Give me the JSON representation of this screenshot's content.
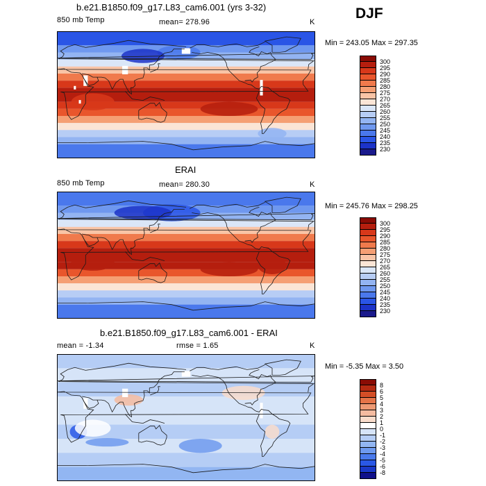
{
  "season": "DJF",
  "units": "K",
  "palettes": {
    "abs": [
      "#1a1a8c",
      "#1c33c8",
      "#2a55e6",
      "#4a78ec",
      "#6f98ef",
      "#93b4f2",
      "#b7cdf5",
      "#dae6f8",
      "#fbe5d6",
      "#f9c4a6",
      "#f59f74",
      "#f07a4c",
      "#e9562c",
      "#d8381a",
      "#b51e0e",
      "#8a0c05"
    ],
    "diff": [
      "#10108a",
      "#1a38c8",
      "#2a58e6",
      "#4a7aec",
      "#6e9aef",
      "#92b6f2",
      "#b5cdf5",
      "#d6e4f8",
      "#ffffff",
      "#f9dccb",
      "#f4bba0",
      "#ee9a74",
      "#e57448",
      "#d34e26",
      "#b52a12",
      "#8a0c05"
    ]
  },
  "panels": [
    {
      "title": "b.e21.B1850.f09_g17.L83_cam6.001 (yrs 3-32)",
      "left_label": "850 mb Temp",
      "center_label": "mean= 278.96",
      "right_label": "K",
      "minmax": "Min = 243.05 Max = 297.35",
      "map_name": "model-temperature-map",
      "palette": "abs",
      "colorbar_labels": [
        "300",
        "295",
        "290",
        "285",
        "280",
        "275",
        "270",
        "265",
        "260",
        "255",
        "250",
        "245",
        "240",
        "235",
        "230"
      ],
      "map_fields": {
        "lat_bands": [
          [
            90,
            70,
            2
          ],
          [
            70,
            60,
            4
          ],
          [
            60,
            50,
            5
          ],
          [
            50,
            40,
            7
          ],
          [
            40,
            30,
            9
          ],
          [
            30,
            20,
            11
          ],
          [
            20,
            10,
            13
          ],
          [
            10,
            -10,
            14
          ],
          [
            -10,
            -20,
            13
          ],
          [
            -20,
            -30,
            12
          ],
          [
            -30,
            -40,
            10
          ],
          [
            -40,
            -50,
            8
          ],
          [
            -50,
            -60,
            6
          ],
          [
            -60,
            -70,
            5
          ],
          [
            -70,
            -90,
            3
          ]
        ],
        "blobs": [
          [
            240,
            -20,
            40,
            10,
            14
          ],
          [
            50,
            -10,
            30,
            12,
            13
          ],
          [
            170,
            60,
            30,
            10,
            3
          ],
          [
            120,
            55,
            30,
            10,
            1
          ],
          [
            300,
            -55,
            20,
            8,
            5
          ]
        ],
        "missing": [
          [
            40,
            20,
            6,
            15
          ],
          [
            95,
            35,
            8,
            12
          ],
          [
            180,
            62,
            12,
            8
          ],
          [
            285,
            10,
            4,
            22
          ],
          [
            25,
            10,
            3,
            5
          ],
          [
            32,
            -10,
            3,
            5
          ]
        ]
      }
    },
    {
      "title": "ERAI",
      "left_label": "850 mb Temp",
      "center_label": "mean= 280.30",
      "right_label": "K",
      "minmax": "Min = 245.76 Max = 298.25",
      "map_name": "erai-temperature-map",
      "palette": "abs",
      "colorbar_labels": [
        "300",
        "295",
        "290",
        "285",
        "280",
        "275",
        "270",
        "265",
        "260",
        "255",
        "250",
        "245",
        "240",
        "235",
        "230"
      ],
      "map_fields": {
        "lat_bands": [
          [
            90,
            70,
            3
          ],
          [
            70,
            60,
            4
          ],
          [
            60,
            50,
            5
          ],
          [
            50,
            40,
            7
          ],
          [
            40,
            30,
            9
          ],
          [
            30,
            20,
            11
          ],
          [
            20,
            10,
            13
          ],
          [
            10,
            -10,
            14
          ],
          [
            -10,
            -20,
            14
          ],
          [
            -20,
            -30,
            12
          ],
          [
            -30,
            -40,
            10
          ],
          [
            -40,
            -50,
            8
          ],
          [
            -50,
            -60,
            6
          ],
          [
            -60,
            -70,
            5
          ],
          [
            -70,
            -90,
            3
          ]
        ],
        "blobs": [
          [
            240,
            -20,
            40,
            10,
            14
          ],
          [
            50,
            -10,
            30,
            12,
            14
          ],
          [
            300,
            -15,
            20,
            12,
            14
          ],
          [
            160,
            60,
            40,
            12,
            2
          ],
          [
            120,
            60,
            40,
            10,
            1
          ]
        ],
        "missing": []
      }
    },
    {
      "title": "b.e21.B1850.f09_g17.L83_cam6.001 - ERAI",
      "left_label": "mean = -1.34",
      "center_label": "rmse = 1.65",
      "right_label": "K",
      "minmax": "Min = -5.35 Max = 3.50",
      "map_name": "difference-map",
      "palette": "diff",
      "colorbar_labels": [
        "8",
        "6",
        "5",
        "4",
        "3",
        "2",
        "1",
        "0",
        "-1",
        "-2",
        "-3",
        "-4",
        "-5",
        "-6",
        "-8"
      ],
      "map_fields": {
        "lat_bands": [
          [
            90,
            70,
            6
          ],
          [
            70,
            50,
            7
          ],
          [
            50,
            30,
            6
          ],
          [
            30,
            10,
            7
          ],
          [
            10,
            -10,
            7
          ],
          [
            -10,
            -30,
            6
          ],
          [
            -30,
            -50,
            7
          ],
          [
            -50,
            -70,
            6
          ],
          [
            -70,
            -90,
            5
          ]
        ],
        "blobs": [
          [
            30,
            -20,
            12,
            10,
            2
          ],
          [
            50,
            -15,
            25,
            12,
            8
          ],
          [
            100,
            25,
            20,
            8,
            10
          ],
          [
            260,
            35,
            30,
            10,
            9
          ],
          [
            70,
            -35,
            30,
            6,
            4
          ],
          [
            300,
            -20,
            10,
            10,
            9
          ],
          [
            200,
            -40,
            30,
            10,
            4
          ]
        ],
        "missing": [
          [
            40,
            20,
            6,
            15
          ],
          [
            95,
            35,
            8,
            12
          ],
          [
            180,
            62,
            12,
            8
          ],
          [
            285,
            10,
            4,
            22
          ]
        ]
      }
    }
  ]
}
